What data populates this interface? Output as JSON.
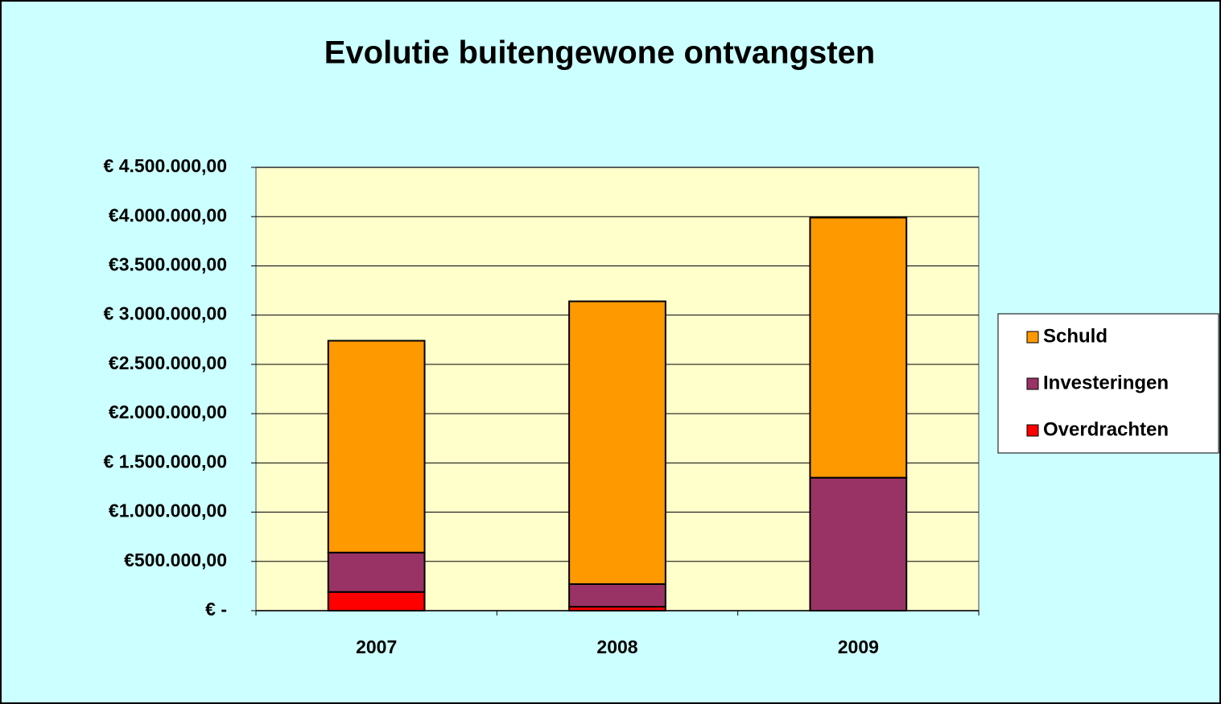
{
  "chart_data": {
    "type": "stacked_bar",
    "title": "Evolutie buitengewone ontvangsten",
    "categories": [
      "2007",
      "2008",
      "2009"
    ],
    "series": [
      {
        "name": "Schuld",
        "color": "#ff9900",
        "values": [
          2150000,
          2870000,
          2640000
        ]
      },
      {
        "name": "Investeringen",
        "color": "#993366",
        "values": [
          400000,
          230000,
          1350000
        ]
      },
      {
        "name": "Overdrachten",
        "color": "#ff0000",
        "values": [
          190000,
          40000,
          0
        ]
      }
    ],
    "ylim": [
      0,
      4500000
    ],
    "yticks": [
      {
        "value": 0,
        "label": "€ -"
      },
      {
        "value": 500000,
        "label": "€500.000,00"
      },
      {
        "value": 1000000,
        "label": "€1.000.000,00"
      },
      {
        "value": 1500000,
        "label": "€ 1.500.000,00"
      },
      {
        "value": 2000000,
        "label": "€2.000.000,00"
      },
      {
        "value": 2500000,
        "label": "€2.500.000,00"
      },
      {
        "value": 3000000,
        "label": "€ 3.000.000,00"
      },
      {
        "value": 3500000,
        "label": "€3.500.000,00"
      },
      {
        "value": 4000000,
        "label": "€4.000.000,00"
      },
      {
        "value": 4500000,
        "label": "€ 4.500.000,00"
      }
    ],
    "grid": true,
    "legend": "right"
  }
}
